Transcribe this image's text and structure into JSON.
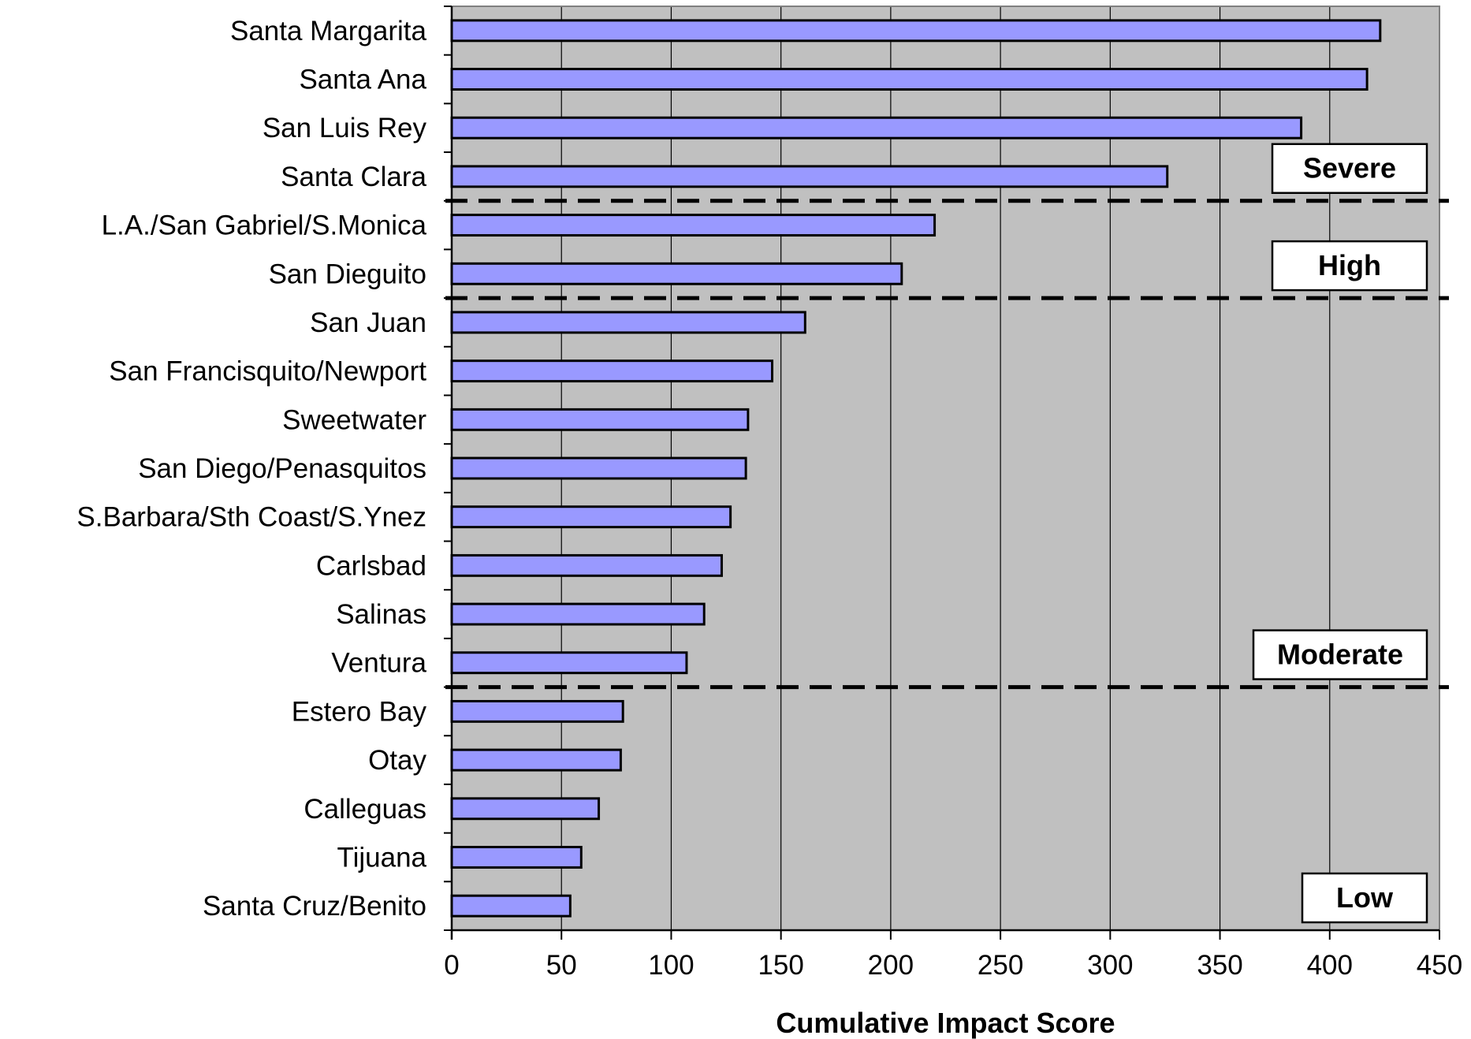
{
  "chart_data": {
    "type": "bar",
    "orientation": "horizontal",
    "categories": [
      "Santa Margarita",
      "Santa Ana",
      "San Luis Rey",
      "Santa Clara",
      "L.A./San Gabriel/S.Monica",
      "San Dieguito",
      "San Juan",
      "San Francisquito/Newport",
      "Sweetwater",
      "San Diego/Penasquitos",
      "S.Barbara/Sth Coast/S.Ynez",
      "Carlsbad",
      "Salinas",
      "Ventura",
      "Estero Bay",
      "Otay",
      "Calleguas",
      "Tijuana",
      "Santa Cruz/Benito"
    ],
    "values": [
      423,
      417,
      387,
      326,
      220,
      205,
      161,
      146,
      135,
      134,
      127,
      123,
      115,
      107,
      78,
      77,
      67,
      59,
      54
    ],
    "xlabel": "Cumulative Impact Score",
    "ylabel": "",
    "xlim": [
      0,
      450
    ],
    "x_ticks": [
      0,
      50,
      100,
      150,
      200,
      250,
      300,
      350,
      400,
      450
    ],
    "grid": "vertical gridlines",
    "bar_color": "#9999ff",
    "plot_background": "#c0c0c0",
    "bands": [
      {
        "label": "Severe",
        "categories": [
          "Santa Margarita",
          "Santa Ana",
          "San Luis Rey",
          "Santa Clara"
        ]
      },
      {
        "label": "High",
        "categories": [
          "L.A./San Gabriel/S.Monica",
          "San Dieguito"
        ]
      },
      {
        "label": "Moderate",
        "categories": [
          "San Juan",
          "San Francisquito/Newport",
          "Sweetwater",
          "San Diego/Penasquitos",
          "S.Barbara/Sth Coast/S.Ynez",
          "Carlsbad",
          "Salinas",
          "Ventura"
        ]
      },
      {
        "label": "Low",
        "categories": [
          "Estero Bay",
          "Otay",
          "Calleguas",
          "Tijuana",
          "Santa Cruz/Benito"
        ]
      }
    ]
  }
}
